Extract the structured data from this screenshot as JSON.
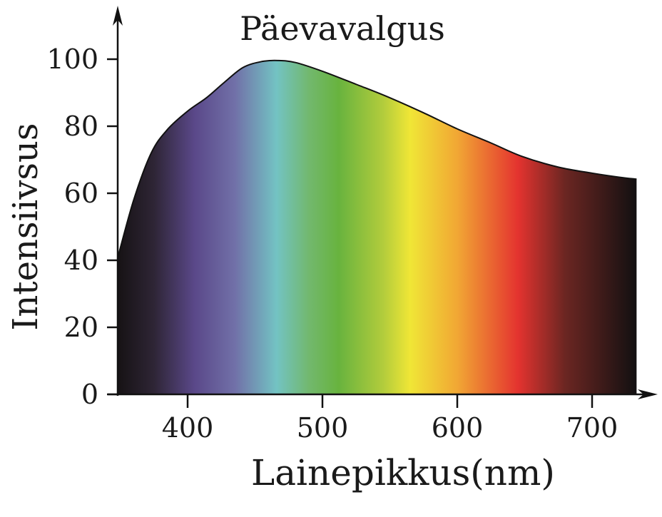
{
  "chart_data": {
    "type": "area",
    "title": "Päevavalgus",
    "xlabel": "Lainepikkus(nm)",
    "ylabel": "Intensiivsus",
    "xlim": [
      348,
      733
    ],
    "ylim": [
      0,
      100
    ],
    "x_ticks": [
      400,
      500,
      600,
      700
    ],
    "y_ticks": [
      0,
      20,
      40,
      60,
      80,
      100
    ],
    "grid": false,
    "fill": "visible spectrum gradient",
    "x": [
      348,
      360,
      373,
      385,
      400,
      414,
      427,
      441,
      455,
      467,
      480,
      500,
      525,
      547,
      575,
      600,
      625,
      648,
      675,
      700,
      720,
      733
    ],
    "y": [
      40.5,
      58,
      72,
      79,
      84.5,
      88.5,
      93,
      97.5,
      99.3,
      99.6,
      99,
      96.4,
      92.5,
      89,
      84,
      79.2,
      75,
      71,
      67.8,
      66,
      64.8,
      64.2
    ],
    "spectrum_colors": [
      {
        "nm": 348,
        "color": "#161214"
      },
      {
        "nm": 375,
        "color": "#2e2535"
      },
      {
        "nm": 405,
        "color": "#5a4889"
      },
      {
        "nm": 435,
        "color": "#7170a8"
      },
      {
        "nm": 466,
        "color": "#73c3c3"
      },
      {
        "nm": 490,
        "color": "#72b86e"
      },
      {
        "nm": 512,
        "color": "#68b33e"
      },
      {
        "nm": 545,
        "color": "#b2cc3c"
      },
      {
        "nm": 565,
        "color": "#f0e636"
      },
      {
        "nm": 600,
        "color": "#f1a734"
      },
      {
        "nm": 645,
        "color": "#e4332f"
      },
      {
        "nm": 680,
        "color": "#6b2622"
      },
      {
        "nm": 733,
        "color": "#121011"
      }
    ]
  }
}
